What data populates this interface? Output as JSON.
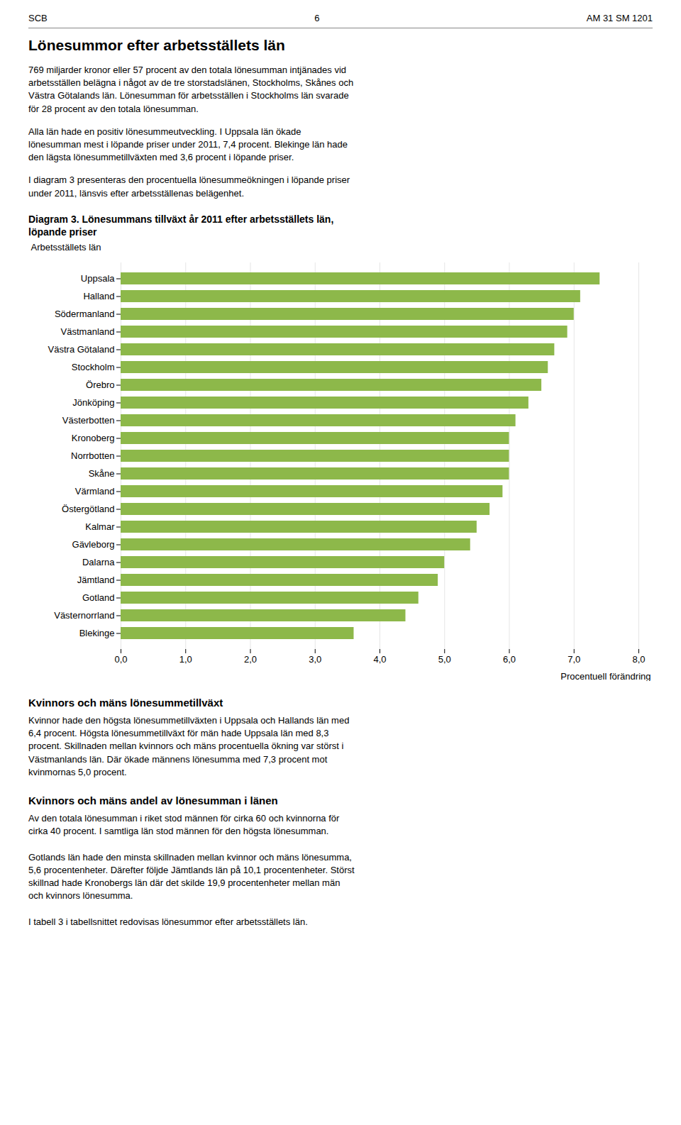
{
  "chart_data": {
    "type": "bar",
    "orientation": "horizontal",
    "title": "Diagram 3. Lönesummans tillväxt år 2011 efter arbetsställets län,\nlöpande priser",
    "y_label": "Arbetsställets län",
    "x_label": "Procentuell förändring",
    "categories": [
      "Uppsala",
      "Halland",
      "Södermanland",
      "Västmanland",
      "Västra Götaland",
      "Stockholm",
      "Örebro",
      "Jönköping",
      "Västerbotten",
      "Kronoberg",
      "Norrbotten",
      "Skåne",
      "Värmland",
      "Östergötland",
      "Kalmar",
      "Gävleborg",
      "Dalarna",
      "Jämtland",
      "Gotland",
      "Västernorrland",
      "Blekinge"
    ],
    "values": [
      7.4,
      7.1,
      7.0,
      6.9,
      6.7,
      6.6,
      6.5,
      6.3,
      6.1,
      6.0,
      6.0,
      6.0,
      5.9,
      5.7,
      5.5,
      5.4,
      5.0,
      4.9,
      4.6,
      4.4,
      3.6
    ],
    "color": "#8db84a",
    "xlim": [
      0,
      8.0
    ],
    "xticks": [
      {
        "value": 0,
        "label": "0,0"
      },
      {
        "value": 1,
        "label": "1,0"
      },
      {
        "value": 2,
        "label": "2,0"
      },
      {
        "value": 3,
        "label": "3,0"
      },
      {
        "value": 4,
        "label": "4,0"
      },
      {
        "value": 5,
        "label": "5,0"
      },
      {
        "value": 6,
        "label": "6,0"
      },
      {
        "value": 7,
        "label": "7,0"
      },
      {
        "value": 8,
        "label": "8,0"
      }
    ],
    "grid": true,
    "annotations": [
      "SCB",
      "6",
      "AM 31 SM 1201",
      "Lönesummor efter arbetsställets län",
      "769 miljarder kronor eller 57 procent av den totala lönesumman intjänades vid\narbetsställen belägna i något av de tre storstadslänen, Stockholms, Skånes och\nVästra Götalands län. Lönesumman för arbetsställen i Stockholms län svarade\nför 28 procent av den totala lönesumman.",
      "Alla län hade en positiv lönesummeutveckling. I Uppsala län ökade\nlönesumman mest i löpande priser under 2011, 7,4 procent. Blekinge län hade\nden lägsta lönesummetillväxten med 3,6 procent i löpande priser.",
      "I diagram 3 presenteras den procentuella lönesummeökningen i löpande priser\nunder 2011, länsvis efter arbetsställenas belägenhet.",
      "Kvinnors och mäns lönesummetillväxt",
      "Kvinnor hade den högsta lönesummetillväxten i Uppsala och Hallands län med\n6,4 procent. Högsta lönesummetillväxt för män hade Uppsala län med 8,3\nprocent. Skillnaden mellan kvinnors och mäns procentuella ökning var störst i\nVästmanlands län. Där ökade männens lönesumma med 7,3 procent mot\nkvinmornas 5,0 procent.",
      "Kvinnors och mäns andel av lönesumman i länen",
      "Av den totala lönesumman i riket stod männen för cirka 60 och kvinnorna för\ncirka 40 procent. I samtliga län stod männen för den högsta lönesumman.\n\nGotlands län hade den minsta skillnaden mellan kvinnor och mäns lönesumma,\n5,6 procentenheter. Därefter följde Jämtlands län på 10,1 procentenheter. Störst\nskillnad hade Kronobergs län där det skilde 19,9 procentenheter mellan män\noch kvinnors lönesumma.\n\nI tabell 3 i tabellsnittet redovisas lönesummor efter arbetsställets län."
    ]
  }
}
